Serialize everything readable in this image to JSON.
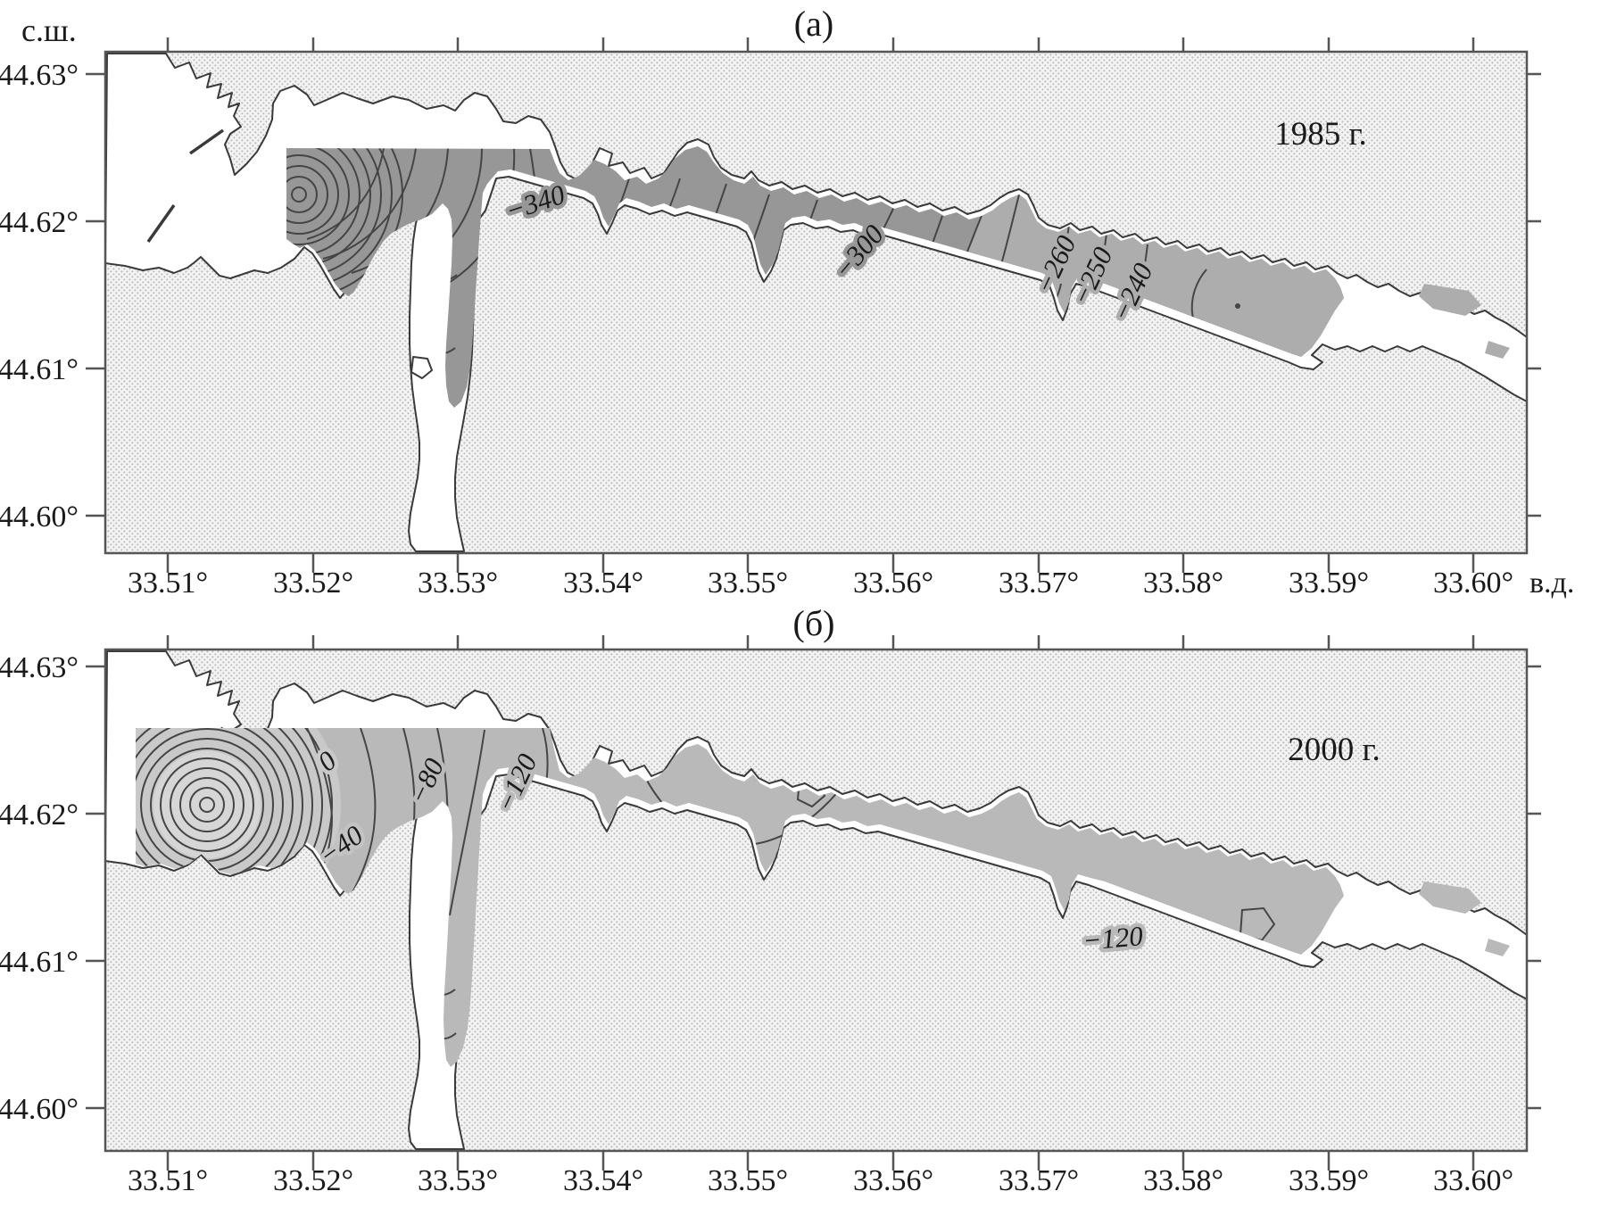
{
  "figure": {
    "panels": [
      {
        "id": "a",
        "title": "(а)",
        "year": "1985 г.",
        "contour_labels": {
          "c340": "−340",
          "c300": "−300",
          "c260": "−260",
          "c250": "−250",
          "c240": "−240"
        },
        "contour_levels_shown": [
          -340,
          -300,
          -260,
          -250,
          -240
        ]
      },
      {
        "id": "b",
        "title": "(б)",
        "year": "2000 г.",
        "contour_labels": {
          "c0": "0",
          "c40": "−40",
          "c80": "−80",
          "c120": "−120",
          "c120e": "−120"
        },
        "contour_levels_shown": [
          0,
          -40,
          -80,
          -120
        ]
      }
    ],
    "axis": {
      "lat_title": "с.ш.",
      "lon_suffix": "в.д.",
      "lat_ticks": [
        "44.63°",
        "44.62°",
        "44.61°",
        "44.60°"
      ],
      "lon_ticks": [
        "33.51°",
        "33.52°",
        "33.53°",
        "33.54°",
        "33.55°",
        "33.56°",
        "33.57°",
        "33.58°",
        "33.59°",
        "33.60°"
      ]
    },
    "colors": {
      "land_stipple_dot": "#b6b6b6",
      "sea_white": "#ffffff",
      "survey_dark_1985": "#979797",
      "survey_light_1985": "#adadad",
      "survey_2000": "#b9b9b9",
      "survey_2000_inner": "#c9c9c9",
      "contour_line": "#454545",
      "frame": "#555555"
    }
  }
}
